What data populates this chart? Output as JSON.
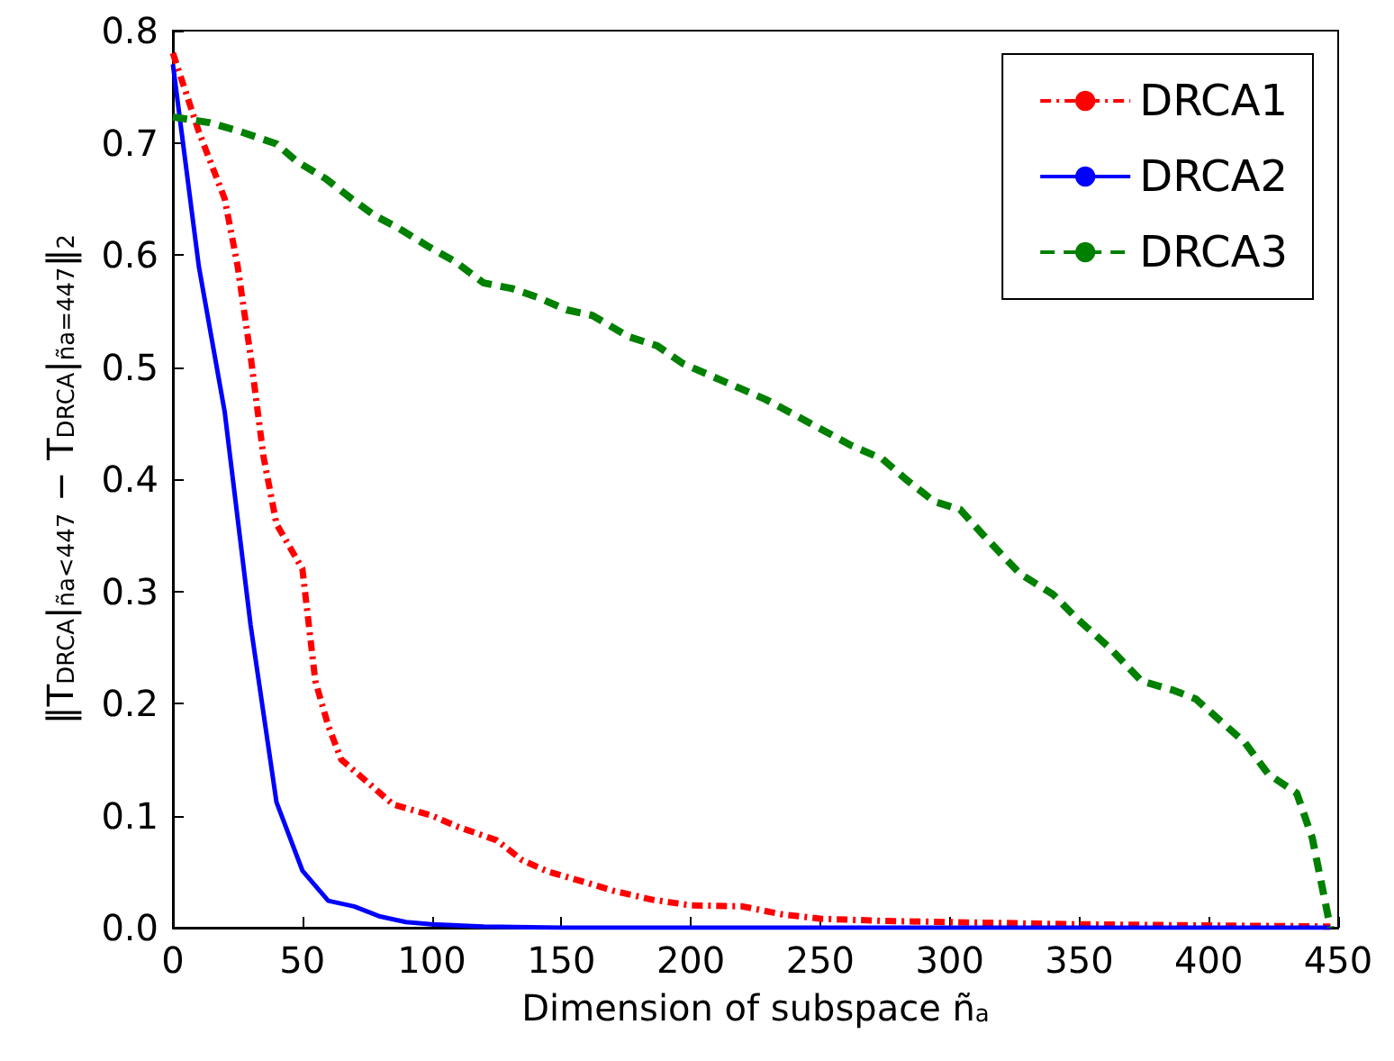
{
  "chart_data": {
    "type": "line",
    "xlabel": "Dimension of subspace ñ$_{a}$",
    "ylabel": "‖T$_{DRCA}$|$_{ña<447}$ − T$_{DRCA}$|$_{ña=447}$‖$_{2}$",
    "xlim": [
      0,
      450
    ],
    "xticks": [
      0,
      50,
      100,
      150,
      200,
      250,
      300,
      350,
      400,
      450
    ],
    "ylim": [
      0,
      0.8
    ],
    "yticks": [
      {
        "value": 0,
        "label": "0.0"
      },
      0.1,
      0.2,
      0.3,
      0.4,
      0.5,
      0.6,
      0.7,
      0.8
    ],
    "grid": false,
    "legend": "top right",
    "marker": "none",
    "series": [
      {
        "name": "DRCA1",
        "color": "#ff0000",
        "line_style": "dotted",
        "x": [
          0,
          10,
          20,
          25,
          30,
          35,
          40,
          45,
          50,
          55,
          60,
          65,
          75,
          85,
          100,
          110,
          125,
          135,
          145,
          160,
          170,
          185,
          200,
          220,
          235,
          250,
          275,
          300,
          350,
          400,
          447
        ],
        "values": [
          0.78,
          0.71,
          0.65,
          0.59,
          0.51,
          0.42,
          0.36,
          0.34,
          0.32,
          0.22,
          0.18,
          0.15,
          0.13,
          0.11,
          0.1,
          0.09,
          0.078,
          0.06,
          0.05,
          0.04,
          0.033,
          0.025,
          0.02,
          0.019,
          0.012,
          0.008,
          0.006,
          0.005,
          0.003,
          0.002,
          0.001
        ]
      },
      {
        "name": "DRCA2",
        "color": "#0000ff",
        "line_style": "solid",
        "x": [
          0,
          10,
          20,
          30,
          40,
          50,
          60,
          70,
          80,
          90,
          100,
          120,
          150,
          200,
          300,
          447
        ],
        "values": [
          0.77,
          0.59,
          0.46,
          0.27,
          0.112,
          0.051,
          0.024,
          0.019,
          0.01,
          0.005,
          0.003,
          0.001,
          0,
          0,
          0,
          0
        ]
      },
      {
        "name": "DRCA3",
        "color": "#008000",
        "line_style": "dashed",
        "x": [
          0,
          14,
          26,
          40,
          48,
          59,
          69,
          78,
          87,
          99,
          109,
          120,
          131,
          141,
          152,
          162,
          176,
          187,
          197,
          207,
          218,
          229,
          242,
          262,
          274,
          283,
          294,
          304,
          313,
          327,
          340,
          349,
          362,
          374,
          386,
          395,
          414,
          423,
          434,
          440,
          447
        ],
        "values": [
          0.723,
          0.718,
          0.71,
          0.699,
          0.683,
          0.668,
          0.65,
          0.635,
          0.624,
          0.607,
          0.594,
          0.575,
          0.57,
          0.562,
          0.551,
          0.546,
          0.527,
          0.519,
          0.503,
          0.493,
          0.482,
          0.471,
          0.455,
          0.43,
          0.418,
          0.4,
          0.38,
          0.373,
          0.35,
          0.316,
          0.297,
          0.276,
          0.249,
          0.22,
          0.212,
          0.204,
          0.165,
          0.137,
          0.12,
          0.08,
          0
        ]
      }
    ]
  }
}
